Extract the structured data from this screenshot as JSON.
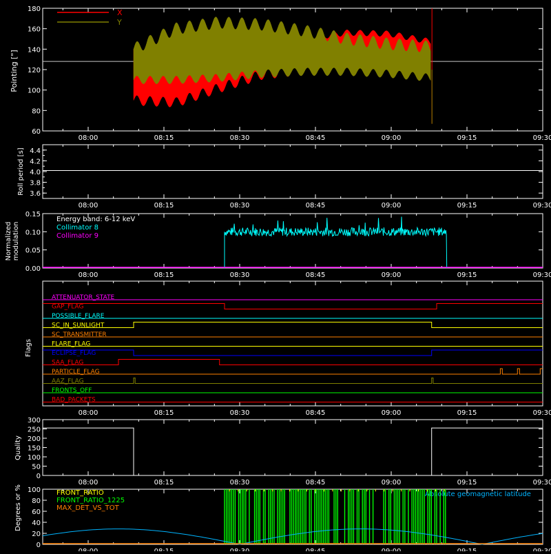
{
  "time_ticks": [
    "08:00",
    "08:15",
    "08:30",
    "08:45",
    "09:00",
    "09:15",
    "09:30"
  ],
  "colors": {
    "axis": "#ffffff",
    "red": "#ff0000",
    "olive": "#808000",
    "cyan": "#00ffff",
    "magenta": "#ff00ff",
    "green": "#00ff00",
    "yellow": "#ffff00",
    "blue": "#0000ff",
    "orange": "#ff8000",
    "sky": "#00b4ff"
  },
  "chart_data": [
    {
      "id": "pointing",
      "type": "line",
      "xlabel": "",
      "ylabel": "Pointing [\"]",
      "xlim": [
        "07:51",
        "09:30"
      ],
      "ylim": [
        60,
        180
      ],
      "yticks": [
        "60",
        "80",
        "100",
        "120",
        "140",
        "160",
        "180"
      ],
      "legend": [
        {
          "label": "X",
          "color": "#ff0000"
        },
        {
          "label": "Y",
          "color": "#808000"
        }
      ],
      "reference_line": 128,
      "data_start": "08:09",
      "data_end": "09:08",
      "series": [
        {
          "name": "X",
          "color": "#ff0000",
          "upper": [
            [
              0,
              140
            ],
            [
              15,
              128
            ],
            [
              30,
              132
            ],
            [
              45,
              140
            ],
            [
              60,
              150
            ],
            [
              75,
              156
            ],
            [
              90,
              155
            ],
            [
              105,
              147
            ]
          ],
          "lower": [
            [
              0,
              90
            ],
            [
              15,
              88
            ],
            [
              30,
              102
            ],
            [
              45,
              115
            ],
            [
              60,
              120
            ],
            [
              75,
              122
            ],
            [
              90,
              118
            ],
            [
              105,
              113
            ]
          ]
        },
        {
          "name": "Y",
          "color": "#808000",
          "upper": [
            [
              0,
              140
            ],
            [
              15,
              160
            ],
            [
              30,
              166
            ],
            [
              45,
              164
            ],
            [
              60,
              158
            ],
            [
              75,
              150
            ],
            [
              90,
              145
            ],
            [
              105,
              142
            ]
          ],
          "lower": [
            [
              0,
              110
            ],
            [
              15,
              110
            ],
            [
              30,
              112
            ],
            [
              45,
              116
            ],
            [
              60,
              118
            ],
            [
              75,
              118
            ],
            [
              90,
              116
            ],
            [
              105,
              112
            ]
          ]
        }
      ]
    },
    {
      "id": "roll",
      "type": "line",
      "xlabel": "",
      "ylabel": "Roll period [s]",
      "xlim": [
        "07:51",
        "09:30"
      ],
      "ylim": [
        3.5,
        4.5
      ],
      "yticks": [
        "3.6",
        "3.8",
        "4.0",
        "4.2",
        "4.4"
      ],
      "series": [
        {
          "name": "",
          "color": "#ffffff",
          "value": 4.02
        }
      ]
    },
    {
      "id": "modulation",
      "type": "line",
      "xlabel": "",
      "ylabel": "Normalized modulation",
      "xlim": [
        "07:51",
        "09:30"
      ],
      "ylim": [
        0,
        0.15
      ],
      "yticks": [
        "0.00",
        "0.05",
        "0.10",
        "0.15"
      ],
      "legend": [
        {
          "label": "Energy band: 6-12 keV",
          "color": "#ffffff"
        },
        {
          "label": "Collimator 8",
          "color": "#00ffff"
        },
        {
          "label": "Collimator 9",
          "color": "#ff00ff"
        }
      ],
      "series": [
        {
          "name": "Collimator 8",
          "color": "#00ffff",
          "start": "08:27",
          "end": "09:11",
          "mean": 0.1,
          "spread": 0.012
        },
        {
          "name": "Collimator 9",
          "color": "#ff00ff",
          "value": 0.0
        }
      ]
    },
    {
      "id": "flags",
      "type": "line",
      "xlabel": "",
      "ylabel": "Flags",
      "xlim": [
        "07:51",
        "09:30"
      ],
      "series": [
        {
          "name": "ATTENUATOR_STATE",
          "color": "#ff00ff",
          "steps": [
            [
              0,
              0
            ]
          ]
        },
        {
          "name": "GAP_FLAG",
          "color": "#ff0000",
          "steps": [
            [
              0,
              1
            ],
            [
              36,
              0
            ],
            [
              78,
              1
            ]
          ]
        },
        {
          "name": "POSSIBLE_FLARE",
          "color": "#00ffff",
          "steps": [
            [
              0,
              0
            ]
          ]
        },
        {
          "name": "SC_IN_SUNLIGHT",
          "color": "#ffff00",
          "steps": [
            [
              0,
              0
            ],
            [
              18,
              1
            ],
            [
              77,
              0
            ]
          ]
        },
        {
          "name": "SC_TRANSMITTER",
          "color": "#ff8000",
          "steps": [
            [
              0,
              0
            ]
          ]
        },
        {
          "name": "FLARE_FLAG",
          "color": "#ffff00",
          "steps": [
            [
              0,
              0
            ]
          ]
        },
        {
          "name": "ECLIPSE_FLAG",
          "color": "#0000ff",
          "steps": [
            [
              0,
              1
            ],
            [
              18,
              0
            ],
            [
              77,
              1
            ]
          ]
        },
        {
          "name": "SAA_FLAG",
          "color": "#ff0000",
          "steps": [
            [
              0,
              0
            ],
            [
              15,
              1
            ],
            [
              35,
              0
            ]
          ]
        },
        {
          "name": "PARTICLE_FLAG",
          "color": "#ff8000",
          "steps": [
            [
              0,
              0
            ],
            [
              90.6,
              1
            ],
            [
              91,
              0
            ],
            [
              94,
              1
            ],
            [
              94.4,
              0
            ],
            [
              98.5,
              1
            ]
          ]
        },
        {
          "name": "AAZ_FLAG",
          "color": "#808000",
          "steps": [
            [
              0,
              0
            ],
            [
              18,
              1
            ],
            [
              18.3,
              0
            ],
            [
              77,
              1
            ],
            [
              77.3,
              0
            ]
          ]
        },
        {
          "name": "FRONTS_OFF",
          "color": "#00ff00",
          "steps": [
            [
              0,
              0
            ]
          ]
        },
        {
          "name": "BAD_PACKETS",
          "color": "#ff0000",
          "steps": [
            [
              0,
              0
            ]
          ]
        }
      ]
    },
    {
      "id": "quality",
      "type": "line",
      "xlabel": "",
      "ylabel": "Quality",
      "xlim": [
        "07:51",
        "09:30"
      ],
      "ylim": [
        0,
        300
      ],
      "yticks": [
        "0",
        "50",
        "100",
        "150",
        "200",
        "250",
        "300"
      ],
      "series": [
        {
          "name": "",
          "color": "#ffffff",
          "steps": [
            [
              0,
              255
            ],
            [
              18,
              0
            ],
            [
              77,
              255
            ]
          ]
        }
      ]
    },
    {
      "id": "degrees",
      "type": "line",
      "xlabel": "",
      "ylabel": "Degrees or %",
      "xlim": [
        "07:51",
        "09:30"
      ],
      "ylim": [
        0,
        100
      ],
      "yticks": [
        "0",
        "20",
        "40",
        "60",
        "80",
        "100"
      ],
      "legend": [
        {
          "label": "FRONT_RATIO",
          "color": "#ffff00"
        },
        {
          "label": "FRONT_RATIO_1225",
          "color": "#00ff00"
        },
        {
          "label": "MAX_DET_VS_TOT",
          "color": "#ff8000"
        },
        {
          "label": "Absolute geomagnetic latitude",
          "color": "#00b4ff"
        }
      ],
      "series": [
        {
          "name": "FRONT_RATIO_1225",
          "color": "#00ff00",
          "start": "08:27",
          "end": "09:11"
        },
        {
          "name": "Absolute geomagnetic latitude",
          "color": "#00b4ff",
          "period_min": 48,
          "max": 28
        }
      ]
    }
  ]
}
